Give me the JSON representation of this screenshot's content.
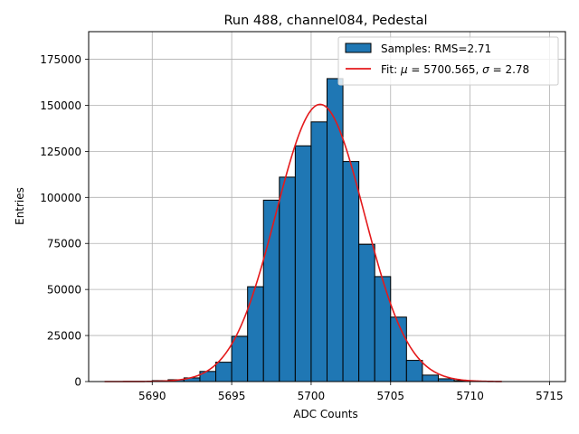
{
  "chart_data": {
    "type": "bar",
    "title": "Run 488, channel084, Pedestal",
    "xlabel": "ADC Counts",
    "ylabel": "Entries",
    "xlim": [
      5686,
      5716
    ],
    "ylim": [
      0,
      190000
    ],
    "xticks": [
      5690,
      5695,
      5700,
      5705,
      5710,
      5715
    ],
    "yticks": [
      0,
      25000,
      50000,
      75000,
      100000,
      125000,
      150000,
      175000
    ],
    "grid": true,
    "legend_position": "top-right",
    "bar_color": "#1f77b4",
    "fit_color": "#e41a1c",
    "bins": [
      {
        "x0": 5690,
        "x1": 5691,
        "value": 500
      },
      {
        "x0": 5691,
        "x1": 5692,
        "value": 1000
      },
      {
        "x0": 5692,
        "x1": 5693,
        "value": 2000
      },
      {
        "x0": 5693,
        "x1": 5694,
        "value": 5500
      },
      {
        "x0": 5694,
        "x1": 5695,
        "value": 10500
      },
      {
        "x0": 5695,
        "x1": 5696,
        "value": 24500
      },
      {
        "x0": 5696,
        "x1": 5697,
        "value": 51500
      },
      {
        "x0": 5697,
        "x1": 5698,
        "value": 98500
      },
      {
        "x0": 5698,
        "x1": 5699,
        "value": 111000
      },
      {
        "x0": 5699,
        "x1": 5700,
        "value": 128000
      },
      {
        "x0": 5700,
        "x1": 5701,
        "value": 141000
      },
      {
        "x0": 5701,
        "x1": 5702,
        "value": 164500
      },
      {
        "x0": 5702,
        "x1": 5703,
        "value": 119500
      },
      {
        "x0": 5703,
        "x1": 5704,
        "value": 74500
      },
      {
        "x0": 5704,
        "x1": 5705,
        "value": 57000
      },
      {
        "x0": 5705,
        "x1": 5706,
        "value": 35000
      },
      {
        "x0": 5706,
        "x1": 5707,
        "value": 11500
      },
      {
        "x0": 5707,
        "x1": 5708,
        "value": 3500
      },
      {
        "x0": 5708,
        "x1": 5709,
        "value": 1500
      },
      {
        "x0": 5709,
        "x1": 5710,
        "value": 500
      }
    ],
    "fit": {
      "mu": 5700.565,
      "sigma": 2.78,
      "peak": 150500,
      "x_range": [
        5687,
        5712
      ]
    },
    "legend": {
      "samples_label": "Samples: RMS=2.71",
      "fit_prefix": "Fit: ",
      "fit_mu_symbol": "μ",
      "fit_mu_text": " = 5700.565, ",
      "fit_sigma_symbol": "σ",
      "fit_sigma_text": " = 2.78"
    }
  }
}
